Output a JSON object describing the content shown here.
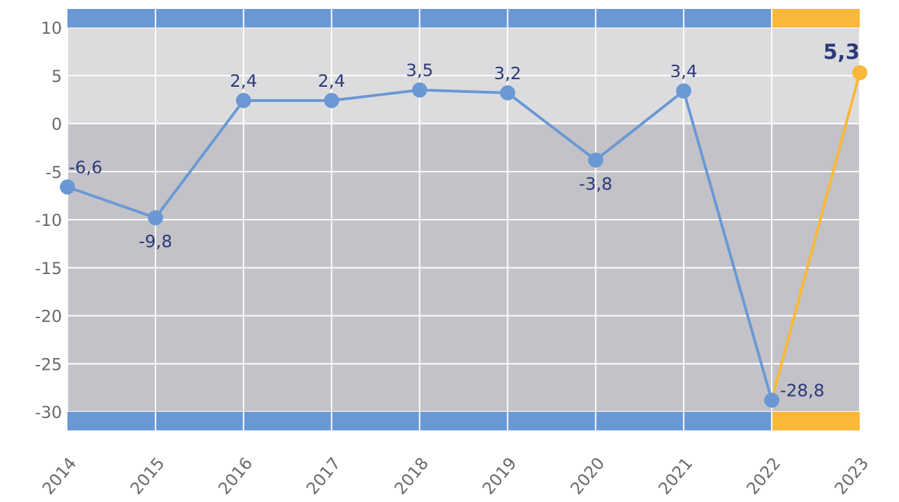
{
  "chart_data": {
    "type": "line",
    "categories": [
      "2014",
      "2015",
      "2016",
      "2017",
      "2018",
      "2019",
      "2020",
      "2021",
      "2022",
      "2023"
    ],
    "values": [
      -6.6,
      -9.8,
      2.4,
      2.4,
      3.5,
      3.2,
      -3.8,
      3.4,
      -28.8,
      5.3
    ],
    "value_labels": [
      "-6,6",
      "-9,8",
      "2,4",
      "2,4",
      "3,5",
      "3,2",
      "-3,8",
      "3,4",
      "-28,8",
      "5,3"
    ],
    "y_ticks": [
      10,
      5,
      0,
      -5,
      -10,
      -15,
      -20,
      -25,
      -30
    ],
    "ylim": [
      -30,
      10
    ],
    "grid": true,
    "highlight_index": 9,
    "colors": {
      "series": "#6a98d4",
      "highlight": "#f9b83a",
      "band_main": "#6a98d4",
      "band_highlight": "#f9b83a",
      "bg_positive": "#dcdcdf",
      "bg_negative": "#c2c2c8",
      "grid": "#ffffff",
      "label": "#2c3a78",
      "tick": "#6a6a6a"
    }
  }
}
